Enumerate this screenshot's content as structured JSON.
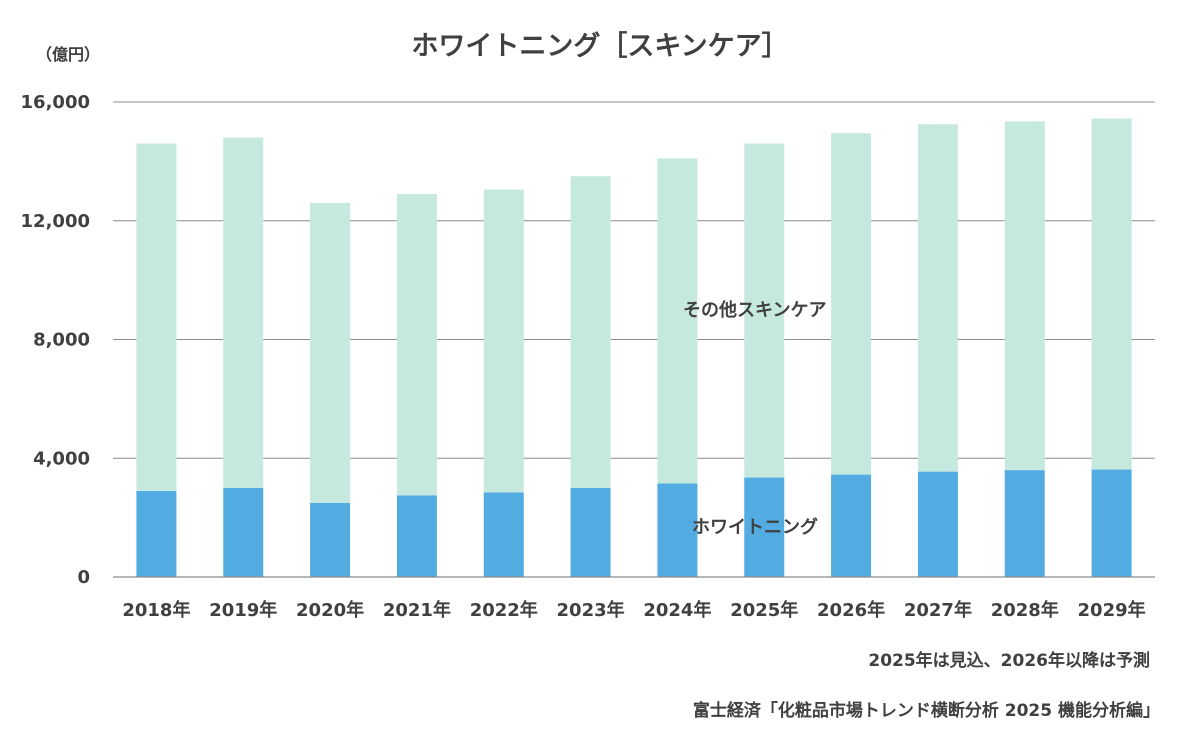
{
  "chart_data": {
    "type": "bar",
    "stacked": true,
    "title": "ホワイトニング［スキンケア］",
    "unit_label": "（億円）",
    "xlabel": "",
    "ylabel": "（億円）",
    "ylim": [
      0,
      16000
    ],
    "yticks": [
      0,
      4000,
      8000,
      12000,
      16000
    ],
    "ytick_labels": [
      "0",
      "4,000",
      "8,000",
      "12,000",
      "16,000"
    ],
    "grid": true,
    "categories": [
      "2018年",
      "2019年",
      "2020年",
      "2021年",
      "2022年",
      "2023年",
      "2024年",
      "2025年",
      "2026年",
      "2027年",
      "2028年",
      "2029年"
    ],
    "series": [
      {
        "name": "ホワイトニング",
        "color": "#52abe1",
        "values": [
          2900,
          3000,
          2500,
          2750,
          2850,
          3000,
          3150,
          3350,
          3450,
          3550,
          3600,
          3620
        ]
      },
      {
        "name": "その他スキンケア",
        "color": "#c6e9df",
        "values": [
          11700,
          11800,
          10100,
          10150,
          10200,
          10500,
          10950,
          11250,
          11500,
          11700,
          11750,
          11820
        ]
      }
    ],
    "notes": [
      "2025年は見込、2026年以降は予測",
      "富士経済「化粧品市場トレンド横断分析 2025 機能分析編」"
    ]
  }
}
